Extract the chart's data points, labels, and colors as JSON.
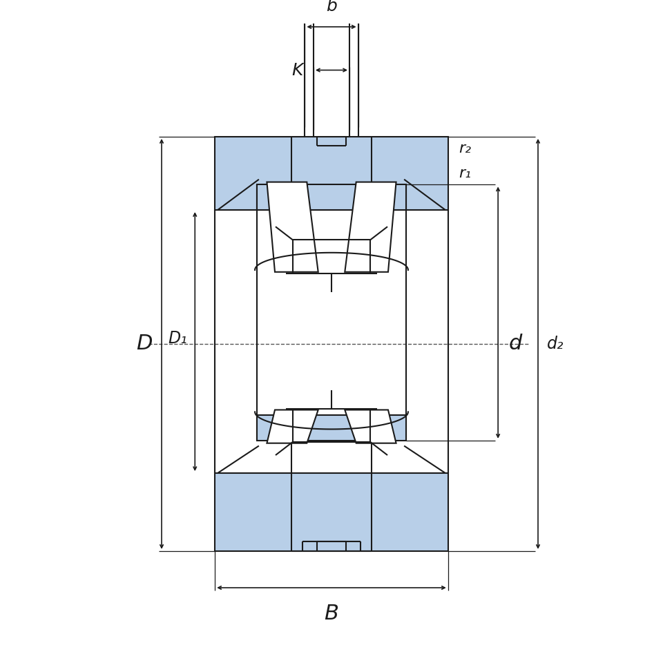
{
  "bg_color": "#ffffff",
  "lc": "#1a1a1a",
  "blue": "#b8cfe8",
  "figsize": [
    9.6,
    9.6
  ],
  "dpi": 100,
  "labels": {
    "b": "b",
    "K": "K",
    "r2": "r₂",
    "r1": "r₁",
    "D": "D",
    "D1": "D₁",
    "d": "d",
    "d2": "d₂",
    "B": "B"
  }
}
